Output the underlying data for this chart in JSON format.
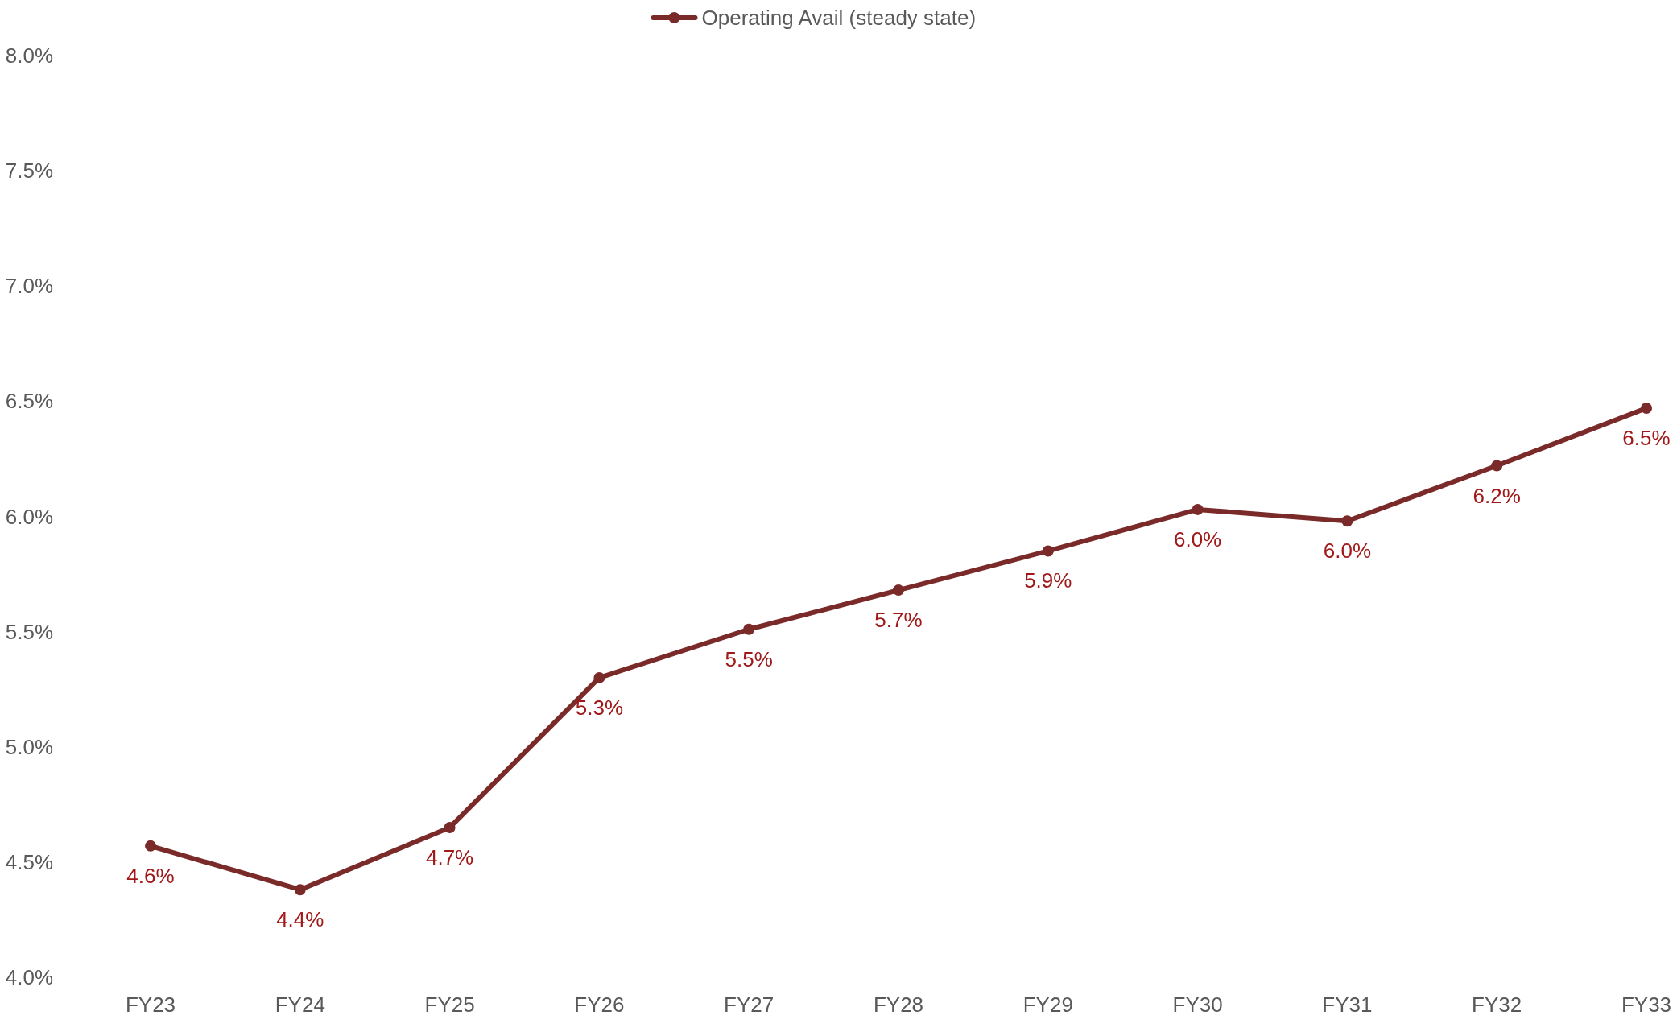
{
  "chart_data": {
    "type": "line",
    "categories": [
      "FY23",
      "FY24",
      "FY25",
      "FY26",
      "FY27",
      "FY28",
      "FY29",
      "FY30",
      "FY31",
      "FY32",
      "FY33"
    ],
    "series": [
      {
        "name": "Operating Avail (steady state)",
        "color": "#7b2a2a",
        "values": [
          4.57,
          4.38,
          4.65,
          5.3,
          5.51,
          5.68,
          5.85,
          6.03,
          5.98,
          6.22,
          6.47
        ],
        "value_labels": [
          "4.6%",
          "4.4%",
          "4.7%",
          "5.3%",
          "5.5%",
          "5.7%",
          "5.9%",
          "6.0%",
          "6.0%",
          "6.2%",
          "6.5%"
        ]
      }
    ],
    "ylim": [
      4,
      8
    ],
    "yticks": [
      {
        "value": 4,
        "label": "4.0%"
      },
      {
        "value": 4.5,
        "label": "4.5%"
      },
      {
        "value": 5,
        "label": "5.0%"
      },
      {
        "value": 5.5,
        "label": "5.5%"
      },
      {
        "value": 6,
        "label": "6.0%"
      },
      {
        "value": 6.5,
        "label": "6.5%"
      },
      {
        "value": 7,
        "label": "7.0%"
      },
      {
        "value": 7.5,
        "label": "7.5%"
      },
      {
        "value": 8,
        "label": "8.0%"
      }
    ],
    "legend": "top",
    "marker": "circle",
    "line_style": "solid",
    "grid": false
  }
}
